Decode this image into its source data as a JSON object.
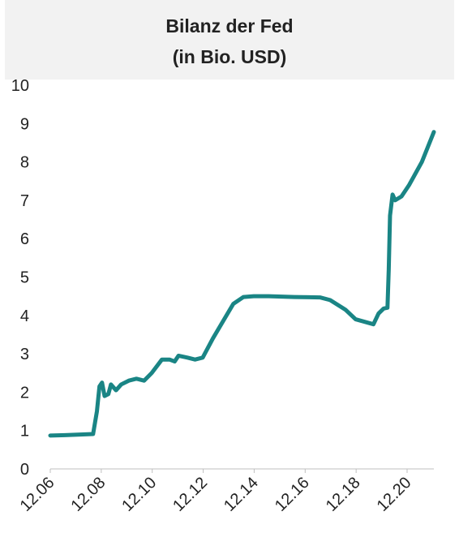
{
  "chart_data": {
    "type": "line",
    "title": [
      "Bilanz der Fed",
      "(in Bio. USD)"
    ],
    "x": [
      2006.92,
      2007.5,
      2008.6,
      2008.75,
      2008.85,
      2008.95,
      2009.05,
      2009.2,
      2009.3,
      2009.5,
      2009.7,
      2010.0,
      2010.3,
      2010.6,
      2010.9,
      2011.3,
      2011.6,
      2011.8,
      2011.95,
      2012.3,
      2012.6,
      2012.9,
      2013.3,
      2013.7,
      2014.1,
      2014.5,
      2014.9,
      2015.5,
      2016.5,
      2017.5,
      2017.9,
      2018.5,
      2018.9,
      2019.6,
      2019.8,
      2020.0,
      2020.15,
      2020.2,
      2020.25,
      2020.35,
      2020.45,
      2020.7,
      2021.0,
      2021.5,
      2021.97
    ],
    "series": [
      {
        "name": "Bilanz der Fed",
        "color": "#1a8585",
        "values": [
          0.87,
          0.88,
          0.91,
          1.5,
          2.15,
          2.25,
          1.9,
          1.95,
          2.2,
          2.05,
          2.2,
          2.3,
          2.35,
          2.3,
          2.5,
          2.85,
          2.85,
          2.8,
          2.95,
          2.9,
          2.85,
          2.9,
          3.4,
          3.85,
          4.3,
          4.48,
          4.5,
          4.5,
          4.48,
          4.47,
          4.4,
          4.15,
          3.9,
          3.77,
          4.05,
          4.18,
          4.2,
          5.2,
          6.6,
          7.15,
          7.0,
          7.1,
          7.4,
          8.0,
          8.78
        ]
      }
    ],
    "xlim": [
      2006.92,
      2021.97
    ],
    "xticks": [
      {
        "value": 2006.92,
        "label": "12.06"
      },
      {
        "value": 2008.92,
        "label": "12.08"
      },
      {
        "value": 2010.92,
        "label": "12.10"
      },
      {
        "value": 2012.92,
        "label": "12.12"
      },
      {
        "value": 2014.92,
        "label": "12.14"
      },
      {
        "value": 2016.92,
        "label": "12.16"
      },
      {
        "value": 2018.92,
        "label": "12.18"
      },
      {
        "value": 2020.92,
        "label": "12.20"
      }
    ],
    "ylim": [
      0,
      10
    ],
    "yticks": [
      0,
      1,
      2,
      3,
      4,
      5,
      6,
      7,
      8,
      9,
      10
    ],
    "grid": false
  }
}
